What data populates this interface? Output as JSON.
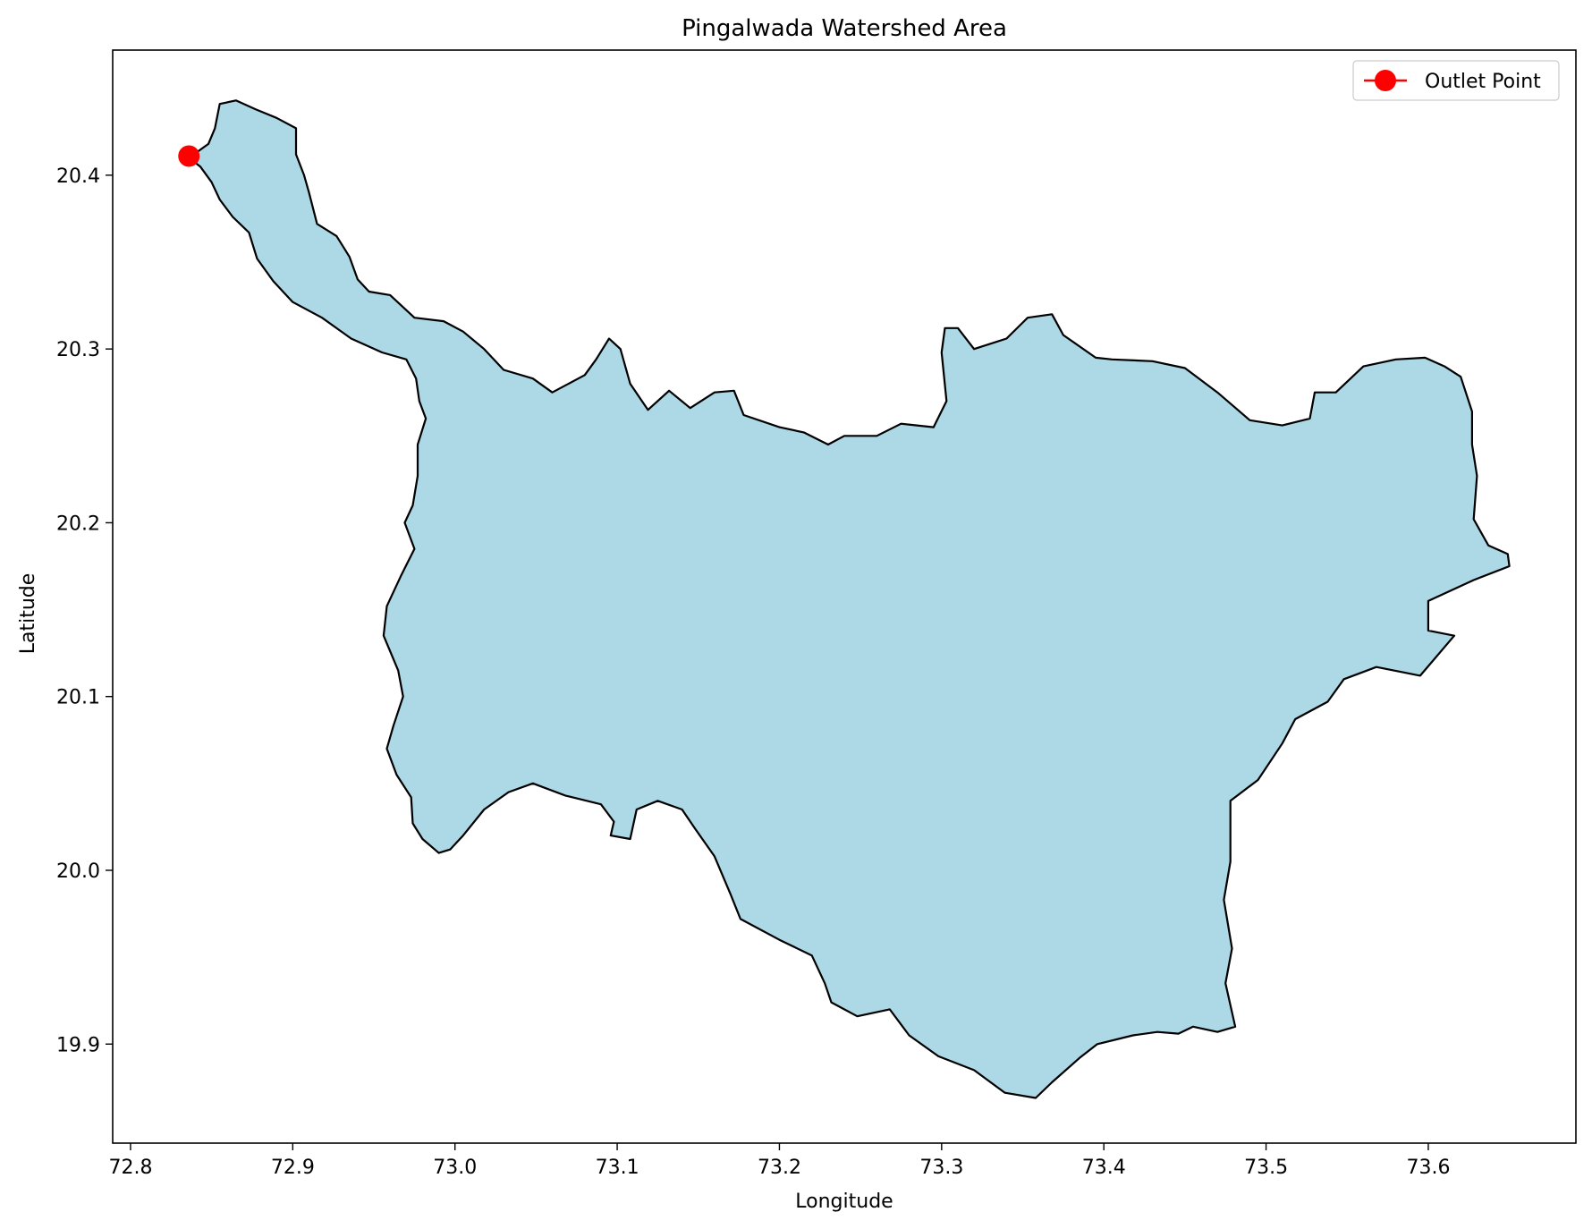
{
  "chart_data": {
    "type": "map",
    "title": "Pingalwada Watershed Area",
    "xlabel": "Longitude",
    "ylabel": "Latitude",
    "xlim": [
      72.789,
      73.691
    ],
    "ylim": [
      19.843,
      20.472
    ],
    "xticks": [
      "72.8",
      "72.9",
      "73.0",
      "73.1",
      "73.2",
      "73.3",
      "73.4",
      "73.5",
      "73.6"
    ],
    "xtick_values": [
      72.8,
      72.9,
      73.0,
      73.1,
      73.2,
      73.3,
      73.4,
      73.5,
      73.6
    ],
    "yticks": [
      "19.9",
      "20.0",
      "20.1",
      "20.2",
      "20.3",
      "20.4"
    ],
    "ytick_values": [
      19.9,
      20.0,
      20.1,
      20.2,
      20.3,
      20.4
    ],
    "grid": false,
    "legend": {
      "placement": "top-right",
      "entries": [
        "Outlet Point"
      ]
    },
    "colors": {
      "watershed_fill": "#add8e6",
      "watershed_edge": "#000000",
      "outlet": "#ff0000"
    },
    "outlet_point": {
      "label": "Outlet Point",
      "lon": 72.836,
      "lat": 20.411
    },
    "watershed_boundary": [
      [
        72.836,
        20.41
      ],
      [
        72.843,
        20.405
      ],
      [
        72.85,
        20.396
      ],
      [
        72.855,
        20.386
      ],
      [
        72.863,
        20.376
      ],
      [
        72.873,
        20.367
      ],
      [
        72.878,
        20.352
      ],
      [
        72.888,
        20.339
      ],
      [
        72.9,
        20.327
      ],
      [
        72.918,
        20.318
      ],
      [
        72.936,
        20.306
      ],
      [
        72.955,
        20.298
      ],
      [
        72.97,
        20.294
      ],
      [
        72.976,
        20.283
      ],
      [
        72.978,
        20.27
      ],
      [
        72.982,
        20.26
      ],
      [
        72.977,
        20.245
      ],
      [
        72.977,
        20.227
      ],
      [
        72.974,
        20.21
      ],
      [
        72.969,
        20.2
      ],
      [
        72.975,
        20.185
      ],
      [
        72.967,
        20.17
      ],
      [
        72.958,
        20.152
      ],
      [
        72.956,
        20.135
      ],
      [
        72.965,
        20.115
      ],
      [
        72.968,
        20.1
      ],
      [
        72.962,
        20.083
      ],
      [
        72.958,
        20.07
      ],
      [
        72.964,
        20.055
      ],
      [
        72.973,
        20.042
      ],
      [
        72.974,
        20.027
      ],
      [
        72.98,
        20.018
      ],
      [
        72.99,
        20.01
      ],
      [
        72.997,
        20.012
      ],
      [
        73.005,
        20.02
      ],
      [
        73.018,
        20.035
      ],
      [
        73.033,
        20.045
      ],
      [
        73.048,
        20.05
      ],
      [
        73.068,
        20.043
      ],
      [
        73.09,
        20.038
      ],
      [
        73.098,
        20.028
      ],
      [
        73.096,
        20.02
      ],
      [
        73.108,
        20.018
      ],
      [
        73.112,
        20.035
      ],
      [
        73.125,
        20.04
      ],
      [
        73.14,
        20.035
      ],
      [
        73.148,
        20.024
      ],
      [
        73.16,
        20.008
      ],
      [
        73.17,
        19.986
      ],
      [
        73.176,
        19.972
      ],
      [
        73.2,
        19.96
      ],
      [
        73.22,
        19.951
      ],
      [
        73.228,
        19.935
      ],
      [
        73.232,
        19.924
      ],
      [
        73.248,
        19.916
      ],
      [
        73.268,
        19.92
      ],
      [
        73.28,
        19.905
      ],
      [
        73.298,
        19.893
      ],
      [
        73.32,
        19.885
      ],
      [
        73.339,
        19.872
      ],
      [
        73.358,
        19.869
      ],
      [
        73.368,
        19.878
      ],
      [
        73.385,
        19.892
      ],
      [
        73.396,
        19.9
      ],
      [
        73.418,
        19.905
      ],
      [
        73.433,
        19.907
      ],
      [
        73.446,
        19.906
      ],
      [
        73.455,
        19.91
      ],
      [
        73.47,
        19.907
      ],
      [
        73.481,
        19.91
      ],
      [
        73.475,
        19.935
      ],
      [
        73.479,
        19.955
      ],
      [
        73.474,
        19.983
      ],
      [
        73.478,
        20.005
      ],
      [
        73.478,
        20.04
      ],
      [
        73.495,
        20.052
      ],
      [
        73.51,
        20.073
      ],
      [
        73.518,
        20.087
      ],
      [
        73.538,
        20.097
      ],
      [
        73.548,
        20.11
      ],
      [
        73.568,
        20.117
      ],
      [
        73.595,
        20.112
      ],
      [
        73.616,
        20.135
      ],
      [
        73.6,
        20.138
      ],
      [
        73.6,
        20.155
      ],
      [
        73.628,
        20.167
      ],
      [
        73.65,
        20.175
      ],
      [
        73.649,
        20.182
      ],
      [
        73.637,
        20.187
      ],
      [
        73.628,
        20.202
      ],
      [
        73.63,
        20.227
      ],
      [
        73.627,
        20.245
      ],
      [
        73.627,
        20.264
      ],
      [
        73.62,
        20.284
      ],
      [
        73.61,
        20.29
      ],
      [
        73.598,
        20.295
      ],
      [
        73.58,
        20.294
      ],
      [
        73.56,
        20.29
      ],
      [
        73.543,
        20.275
      ],
      [
        73.53,
        20.275
      ],
      [
        73.527,
        20.26
      ],
      [
        73.51,
        20.256
      ],
      [
        73.49,
        20.259
      ],
      [
        73.47,
        20.275
      ],
      [
        73.45,
        20.289
      ],
      [
        73.43,
        20.293
      ],
      [
        73.405,
        20.294
      ],
      [
        73.395,
        20.295
      ],
      [
        73.375,
        20.308
      ],
      [
        73.368,
        20.32
      ],
      [
        73.353,
        20.318
      ],
      [
        73.34,
        20.306
      ],
      [
        73.32,
        20.3
      ],
      [
        73.31,
        20.312
      ],
      [
        73.302,
        20.312
      ],
      [
        73.3,
        20.298
      ],
      [
        73.303,
        20.27
      ],
      [
        73.295,
        20.255
      ],
      [
        73.275,
        20.257
      ],
      [
        73.26,
        20.25
      ],
      [
        73.24,
        20.25
      ],
      [
        73.23,
        20.245
      ],
      [
        73.215,
        20.252
      ],
      [
        73.2,
        20.255
      ],
      [
        73.178,
        20.262
      ],
      [
        73.172,
        20.276
      ],
      [
        73.16,
        20.275
      ],
      [
        73.145,
        20.266
      ],
      [
        73.132,
        20.276
      ],
      [
        73.119,
        20.265
      ],
      [
        73.108,
        20.28
      ],
      [
        73.102,
        20.3
      ],
      [
        73.095,
        20.306
      ],
      [
        73.087,
        20.294
      ],
      [
        73.08,
        20.285
      ],
      [
        73.06,
        20.275
      ],
      [
        73.048,
        20.283
      ],
      [
        73.03,
        20.288
      ],
      [
        73.018,
        20.3
      ],
      [
        73.005,
        20.31
      ],
      [
        72.993,
        20.316
      ],
      [
        72.975,
        20.318
      ],
      [
        72.96,
        20.331
      ],
      [
        72.947,
        20.333
      ],
      [
        72.94,
        20.34
      ],
      [
        72.935,
        20.353
      ],
      [
        72.927,
        20.365
      ],
      [
        72.915,
        20.372
      ],
      [
        72.91,
        20.39
      ],
      [
        72.907,
        20.4
      ],
      [
        72.902,
        20.412
      ],
      [
        72.902,
        20.427
      ],
      [
        72.89,
        20.433
      ],
      [
        72.877,
        20.438
      ],
      [
        72.865,
        20.443
      ],
      [
        72.855,
        20.441
      ],
      [
        72.852,
        20.427
      ],
      [
        72.848,
        20.418
      ],
      [
        72.839,
        20.412
      ]
    ]
  }
}
